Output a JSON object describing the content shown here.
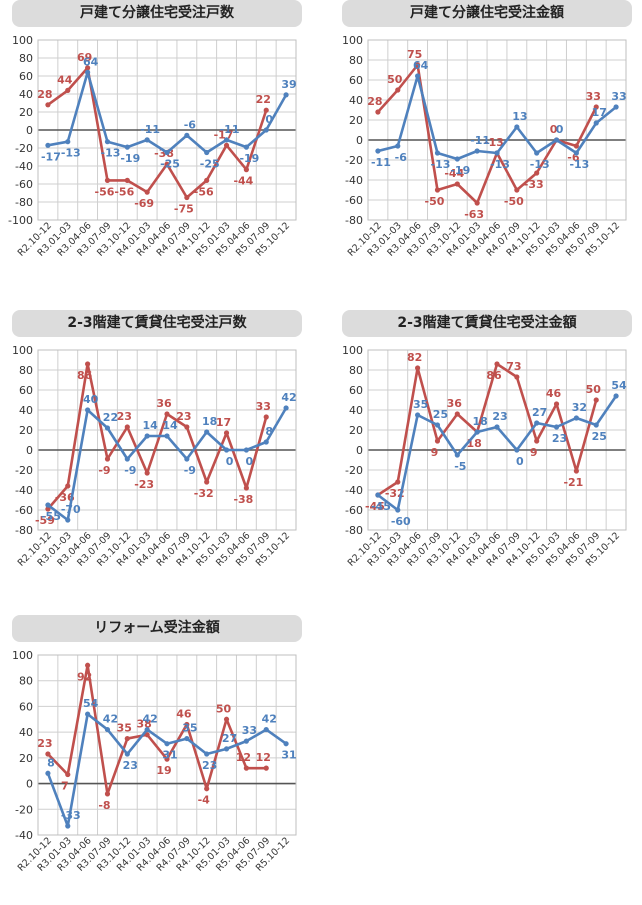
{
  "chart_data": [
    {
      "type": "line",
      "title": "戸建て分譲住宅受注戸数",
      "categories": [
        "R2.10-12",
        "R3.01-03",
        "R3.04-06",
        "R3.07-09",
        "R3.10-12",
        "R4.01-03",
        "R4.04-06",
        "R4.07-09",
        "R4.10-12",
        "R5.01-03",
        "R5.04-06",
        "R5.07-09",
        "R5.10-12"
      ],
      "ylim": [
        -100,
        100
      ],
      "yticks": [
        100,
        80,
        60,
        40,
        20,
        0,
        -20,
        -40,
        -60,
        -80,
        -100
      ],
      "series": [
        {
          "color": "#c0504d",
          "values": [
            28,
            44,
            69,
            -56,
            -56,
            -69,
            -38,
            -75,
            -56,
            -17,
            -44,
            22,
            null
          ]
        },
        {
          "color": "#4f81bd",
          "values": [
            -17,
            -13,
            64,
            -13,
            -19,
            -11,
            -25,
            -6,
            -25,
            -11,
            -19,
            0,
            39
          ]
        }
      ]
    },
    {
      "type": "line",
      "title": "戸建て分譲住宅受注金額",
      "categories": [
        "R2.10-12",
        "R3.01-03",
        "R3.04-06",
        "R3.07-09",
        "R3.10-12",
        "R4.01-03",
        "R4.04-06",
        "R4.07-09",
        "R4.10-12",
        "R5.01-03",
        "R5.04-06",
        "R5.07-09",
        "R5.10-12"
      ],
      "ylim": [
        -80,
        100
      ],
      "yticks": [
        100,
        80,
        60,
        40,
        20,
        0,
        -20,
        -40,
        -60,
        -80
      ],
      "series": [
        {
          "color": "#c0504d",
          "values": [
            28,
            50,
            75,
            -50,
            -44,
            -63,
            -13,
            -50,
            -33,
            0,
            -6,
            33,
            null
          ]
        },
        {
          "color": "#4f81bd",
          "values": [
            -11,
            -6,
            64,
            -13,
            -19,
            -11,
            -13,
            13,
            -13,
            0,
            -13,
            17,
            33
          ]
        }
      ]
    },
    {
      "type": "line",
      "title": "2-3階建て賃貸住宅受注戸数",
      "categories": [
        "R2.10-12",
        "R3.01-03",
        "R3.04-06",
        "R3.07-09",
        "R3.10-12",
        "R4.01-03",
        "R4.04-06",
        "R4.07-09",
        "R4.10-12",
        "R5.01-03",
        "R5.04-06",
        "R5.07-09",
        "R5.10-12"
      ],
      "ylim": [
        -80,
        100
      ],
      "yticks": [
        100,
        80,
        60,
        40,
        20,
        0,
        -20,
        -40,
        -60,
        -80
      ],
      "series": [
        {
          "color": "#c0504d",
          "values": [
            -59,
            -36,
            86,
            -9,
            23,
            -23,
            36,
            23,
            -32,
            17,
            -38,
            33,
            null
          ]
        },
        {
          "color": "#4f81bd",
          "values": [
            -55,
            -70,
            40,
            22,
            -9,
            14,
            14,
            -9,
            18,
            0,
            0,
            8,
            42
          ]
        }
      ]
    },
    {
      "type": "line",
      "title": "2-3階建て賃貸住宅受注金額",
      "categories": [
        "R2.10-12",
        "R3.01-03",
        "R3.04-06",
        "R3.07-09",
        "R3.10-12",
        "R4.01-03",
        "R4.04-06",
        "R4.07-09",
        "R4.10-12",
        "R5.01-03",
        "R5.04-06",
        "R5.07-09",
        "R5.10-12"
      ],
      "ylim": [
        -80,
        100
      ],
      "yticks": [
        100,
        80,
        60,
        40,
        20,
        0,
        -20,
        -40,
        -60,
        -80
      ],
      "series": [
        {
          "color": "#c0504d",
          "values": [
            -45,
            -32,
            82,
            9,
            36,
            18,
            86,
            73,
            9,
            46,
            -21,
            50,
            null
          ]
        },
        {
          "color": "#4f81bd",
          "values": [
            -45,
            -60,
            35,
            25,
            -5,
            18,
            23,
            0,
            27,
            23,
            32,
            25,
            54
          ]
        }
      ]
    },
    {
      "type": "line",
      "title": "リフォーム受注金額",
      "categories": [
        "R2.10-12",
        "R3.01-03",
        "R3.04-06",
        "R3.07-09",
        "R3.10-12",
        "R4.01-03",
        "R4.04-06",
        "R4.07-09",
        "R4.10-12",
        "R5.01-03",
        "R5.04-06",
        "R5.07-09",
        "R5.10-12"
      ],
      "ylim": [
        -40,
        100
      ],
      "yticks": [
        100,
        80,
        60,
        40,
        20,
        0,
        -20,
        -40
      ],
      "series": [
        {
          "color": "#c0504d",
          "values": [
            23,
            7,
            92,
            -8,
            35,
            38,
            19,
            46,
            -4,
            50,
            12,
            12,
            null
          ]
        },
        {
          "color": "#4f81bd",
          "values": [
            8,
            -33,
            54,
            42,
            23,
            42,
            31,
            35,
            23,
            27,
            33,
            42,
            31
          ]
        }
      ]
    }
  ]
}
